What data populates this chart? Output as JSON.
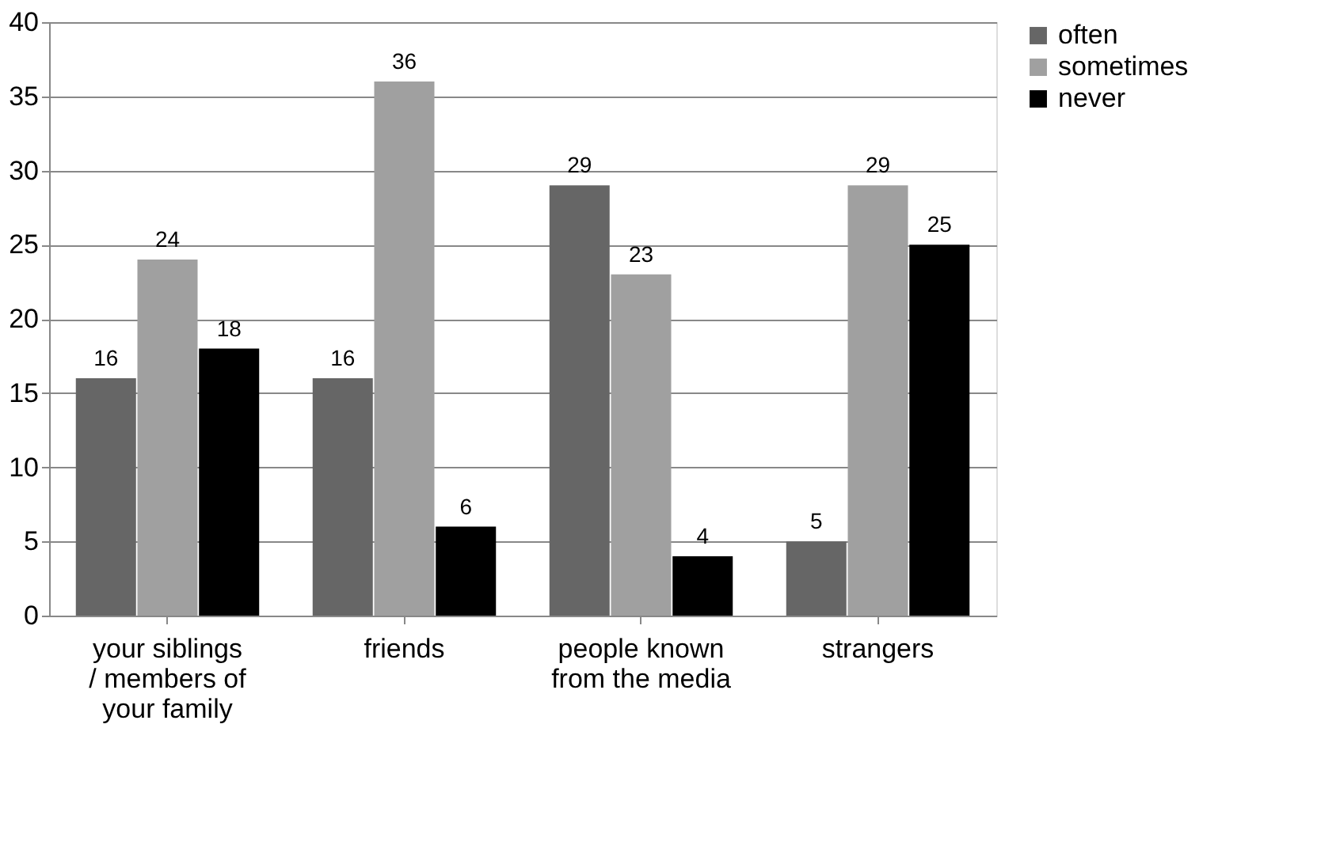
{
  "chart_data": {
    "type": "bar",
    "categories": [
      "your siblings / members of your family",
      "friends",
      "people known from the media",
      "strangers"
    ],
    "series": [
      {
        "name": "often",
        "color": "#666666",
        "values": [
          16,
          16,
          29,
          5
        ]
      },
      {
        "name": "sometimes",
        "color": "#a0a0a0",
        "values": [
          24,
          36,
          23,
          29
        ]
      },
      {
        "name": "never",
        "color": "#000000",
        "values": [
          18,
          6,
          4,
          25
        ]
      }
    ],
    "ylim": [
      0,
      40
    ],
    "yticks": [
      0,
      5,
      10,
      15,
      20,
      25,
      30,
      35,
      40
    ],
    "grid": "y",
    "legend": "top right",
    "data_labels": true
  }
}
